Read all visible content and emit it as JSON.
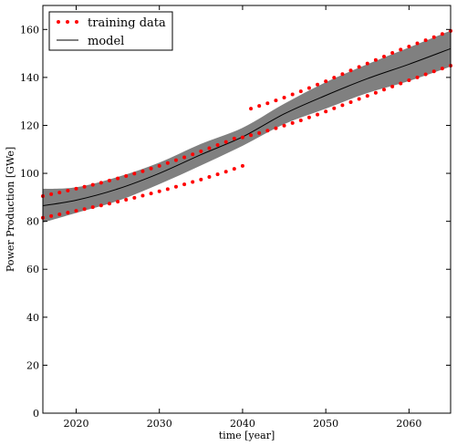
{
  "chart_data": {
    "type": "scatter",
    "xlabel": "time [year]",
    "ylabel": "Power Production [GWe]",
    "xlim": [
      2016,
      2065
    ],
    "ylim": [
      0,
      170
    ],
    "xticks": [
      2020,
      2030,
      2040,
      2050,
      2060
    ],
    "yticks": [
      0,
      20,
      40,
      60,
      80,
      100,
      120,
      140,
      160
    ],
    "grid": false,
    "legend_position": "top-left",
    "legend": [
      {
        "label": "training data",
        "marker": "dots",
        "color": "#ff0000"
      },
      {
        "label": "model",
        "marker": "line",
        "color": "#000000"
      }
    ],
    "band_color": "#808080",
    "series": [
      {
        "name": "training data",
        "color": "#ff0000",
        "points": [
          [
            2016,
            90.5
          ],
          [
            2017,
            91.3
          ],
          [
            2018,
            92.0
          ],
          [
            2019,
            92.8
          ],
          [
            2020,
            93.6
          ],
          [
            2021,
            94.4
          ],
          [
            2022,
            95.2
          ],
          [
            2023,
            96.1
          ],
          [
            2024,
            97.0
          ],
          [
            2025,
            97.9
          ],
          [
            2026,
            98.9
          ],
          [
            2027,
            99.9
          ],
          [
            2028,
            100.9
          ],
          [
            2029,
            102.0
          ],
          [
            2030,
            103.1
          ],
          [
            2031,
            104.3
          ],
          [
            2032,
            105.5
          ],
          [
            2033,
            106.7
          ],
          [
            2034,
            107.9
          ],
          [
            2035,
            109.2
          ],
          [
            2036,
            110.5
          ],
          [
            2037,
            111.8
          ],
          [
            2038,
            113.1
          ],
          [
            2039,
            114.5
          ],
          [
            2016,
            81.5
          ],
          [
            2017,
            82.2
          ],
          [
            2018,
            82.9
          ],
          [
            2019,
            83.6
          ],
          [
            2020,
            84.4
          ],
          [
            2021,
            85.1
          ],
          [
            2022,
            85.9
          ],
          [
            2023,
            86.6
          ],
          [
            2024,
            87.4
          ],
          [
            2025,
            88.2
          ],
          [
            2026,
            89.0
          ],
          [
            2027,
            89.8
          ],
          [
            2028,
            90.7
          ],
          [
            2029,
            91.6
          ],
          [
            2030,
            92.5
          ],
          [
            2031,
            93.4
          ],
          [
            2032,
            94.4
          ],
          [
            2033,
            95.4
          ],
          [
            2034,
            96.4
          ],
          [
            2035,
            97.4
          ],
          [
            2036,
            98.5
          ],
          [
            2037,
            99.6
          ],
          [
            2038,
            100.7
          ],
          [
            2039,
            101.9
          ],
          [
            2040,
            103.1
          ],
          [
            2041,
            127.0
          ],
          [
            2042,
            128.1
          ],
          [
            2043,
            129.2
          ],
          [
            2044,
            130.4
          ],
          [
            2045,
            131.6
          ],
          [
            2046,
            132.9
          ],
          [
            2047,
            134.2
          ],
          [
            2048,
            135.6
          ],
          [
            2049,
            137.0
          ],
          [
            2050,
            138.4
          ],
          [
            2051,
            139.9
          ],
          [
            2052,
            141.4
          ],
          [
            2053,
            142.9
          ],
          [
            2054,
            144.4
          ],
          [
            2055,
            145.8
          ],
          [
            2056,
            147.3
          ],
          [
            2057,
            148.7
          ],
          [
            2058,
            150.2
          ],
          [
            2059,
            151.6
          ],
          [
            2060,
            152.9
          ],
          [
            2061,
            154.2
          ],
          [
            2062,
            155.5
          ],
          [
            2063,
            156.8
          ],
          [
            2064,
            158.1
          ],
          [
            2065,
            159.4
          ],
          [
            2040,
            115.0
          ],
          [
            2041,
            115.9
          ],
          [
            2042,
            116.8
          ],
          [
            2043,
            117.8
          ],
          [
            2044,
            118.8
          ],
          [
            2045,
            119.9
          ],
          [
            2046,
            121.0
          ],
          [
            2047,
            122.1
          ],
          [
            2048,
            123.3
          ],
          [
            2049,
            124.5
          ],
          [
            2050,
            125.8
          ],
          [
            2051,
            127.1
          ],
          [
            2052,
            128.4
          ],
          [
            2053,
            129.7
          ],
          [
            2054,
            131.0
          ],
          [
            2055,
            132.3
          ],
          [
            2056,
            133.6
          ],
          [
            2057,
            134.9
          ],
          [
            2058,
            136.2
          ],
          [
            2059,
            137.5
          ],
          [
            2060,
            138.8
          ],
          [
            2061,
            140.0
          ],
          [
            2062,
            141.3
          ],
          [
            2063,
            142.5
          ],
          [
            2064,
            143.7
          ],
          [
            2065,
            144.9
          ]
        ]
      },
      {
        "name": "model",
        "color": "#000000",
        "x": [
          2016,
          2020,
          2025,
          2030,
          2035,
          2040,
          2045,
          2050,
          2055,
          2060,
          2065
        ],
        "y": [
          86.5,
          88.8,
          93.5,
          100.0,
          107.8,
          115.2,
          124.8,
          132.5,
          139.5,
          145.5,
          152.0
        ],
        "band_lower": [
          79.5,
          83.5,
          88.5,
          95.5,
          103.3,
          111.5,
          120.5,
          127.0,
          133.5,
          138.5,
          144.5
        ],
        "band_upper": [
          93.5,
          94.2,
          98.5,
          104.5,
          112.3,
          119.0,
          129.0,
          138.0,
          145.5,
          152.5,
          159.5
        ]
      }
    ]
  }
}
